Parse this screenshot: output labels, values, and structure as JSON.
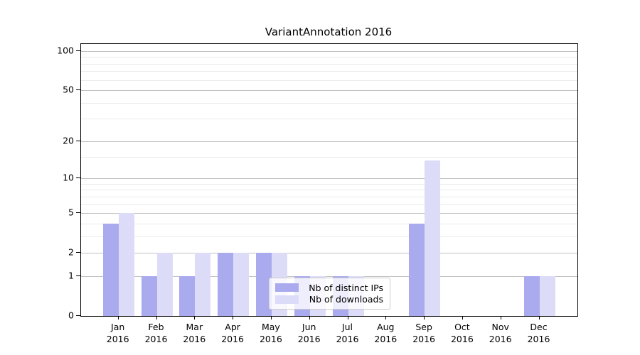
{
  "title": "VariantAnnotation 2016",
  "chart_data": {
    "type": "bar",
    "title": "VariantAnnotation 2016",
    "categories": [
      "Jan",
      "Feb",
      "Mar",
      "Apr",
      "May",
      "Jun",
      "Jul",
      "Aug",
      "Sep",
      "Oct",
      "Nov",
      "Dec"
    ],
    "category_year": "2016",
    "series": [
      {
        "name": "Nb of distinct IPs",
        "color": "#aaaaee",
        "values": [
          4,
          1,
          1,
          2,
          2,
          1,
          1,
          0,
          4,
          0,
          0,
          1
        ]
      },
      {
        "name": "Nb of downloads",
        "color": "#dcdcf9",
        "values": [
          5,
          2,
          2,
          2,
          2,
          1,
          1,
          0,
          14,
          0,
          0,
          1
        ]
      }
    ],
    "y_scale": "log10(1+x)",
    "y_ticks": [
      0,
      1,
      2,
      5,
      10,
      20,
      50,
      100
    ],
    "y_minor_gridlines": [
      3,
      4,
      6,
      7,
      8,
      9,
      15,
      30,
      40,
      60,
      70,
      80,
      90
    ],
    "ylim": [
      0,
      113
    ],
    "grid": "horizontal",
    "legend_position": "lower center"
  },
  "colors": {
    "major_grid": "#c0c0c0",
    "minor_grid": "#ebebeb",
    "axis": "#000000",
    "background": "#ffffff",
    "legend_border": "#cccccc"
  }
}
